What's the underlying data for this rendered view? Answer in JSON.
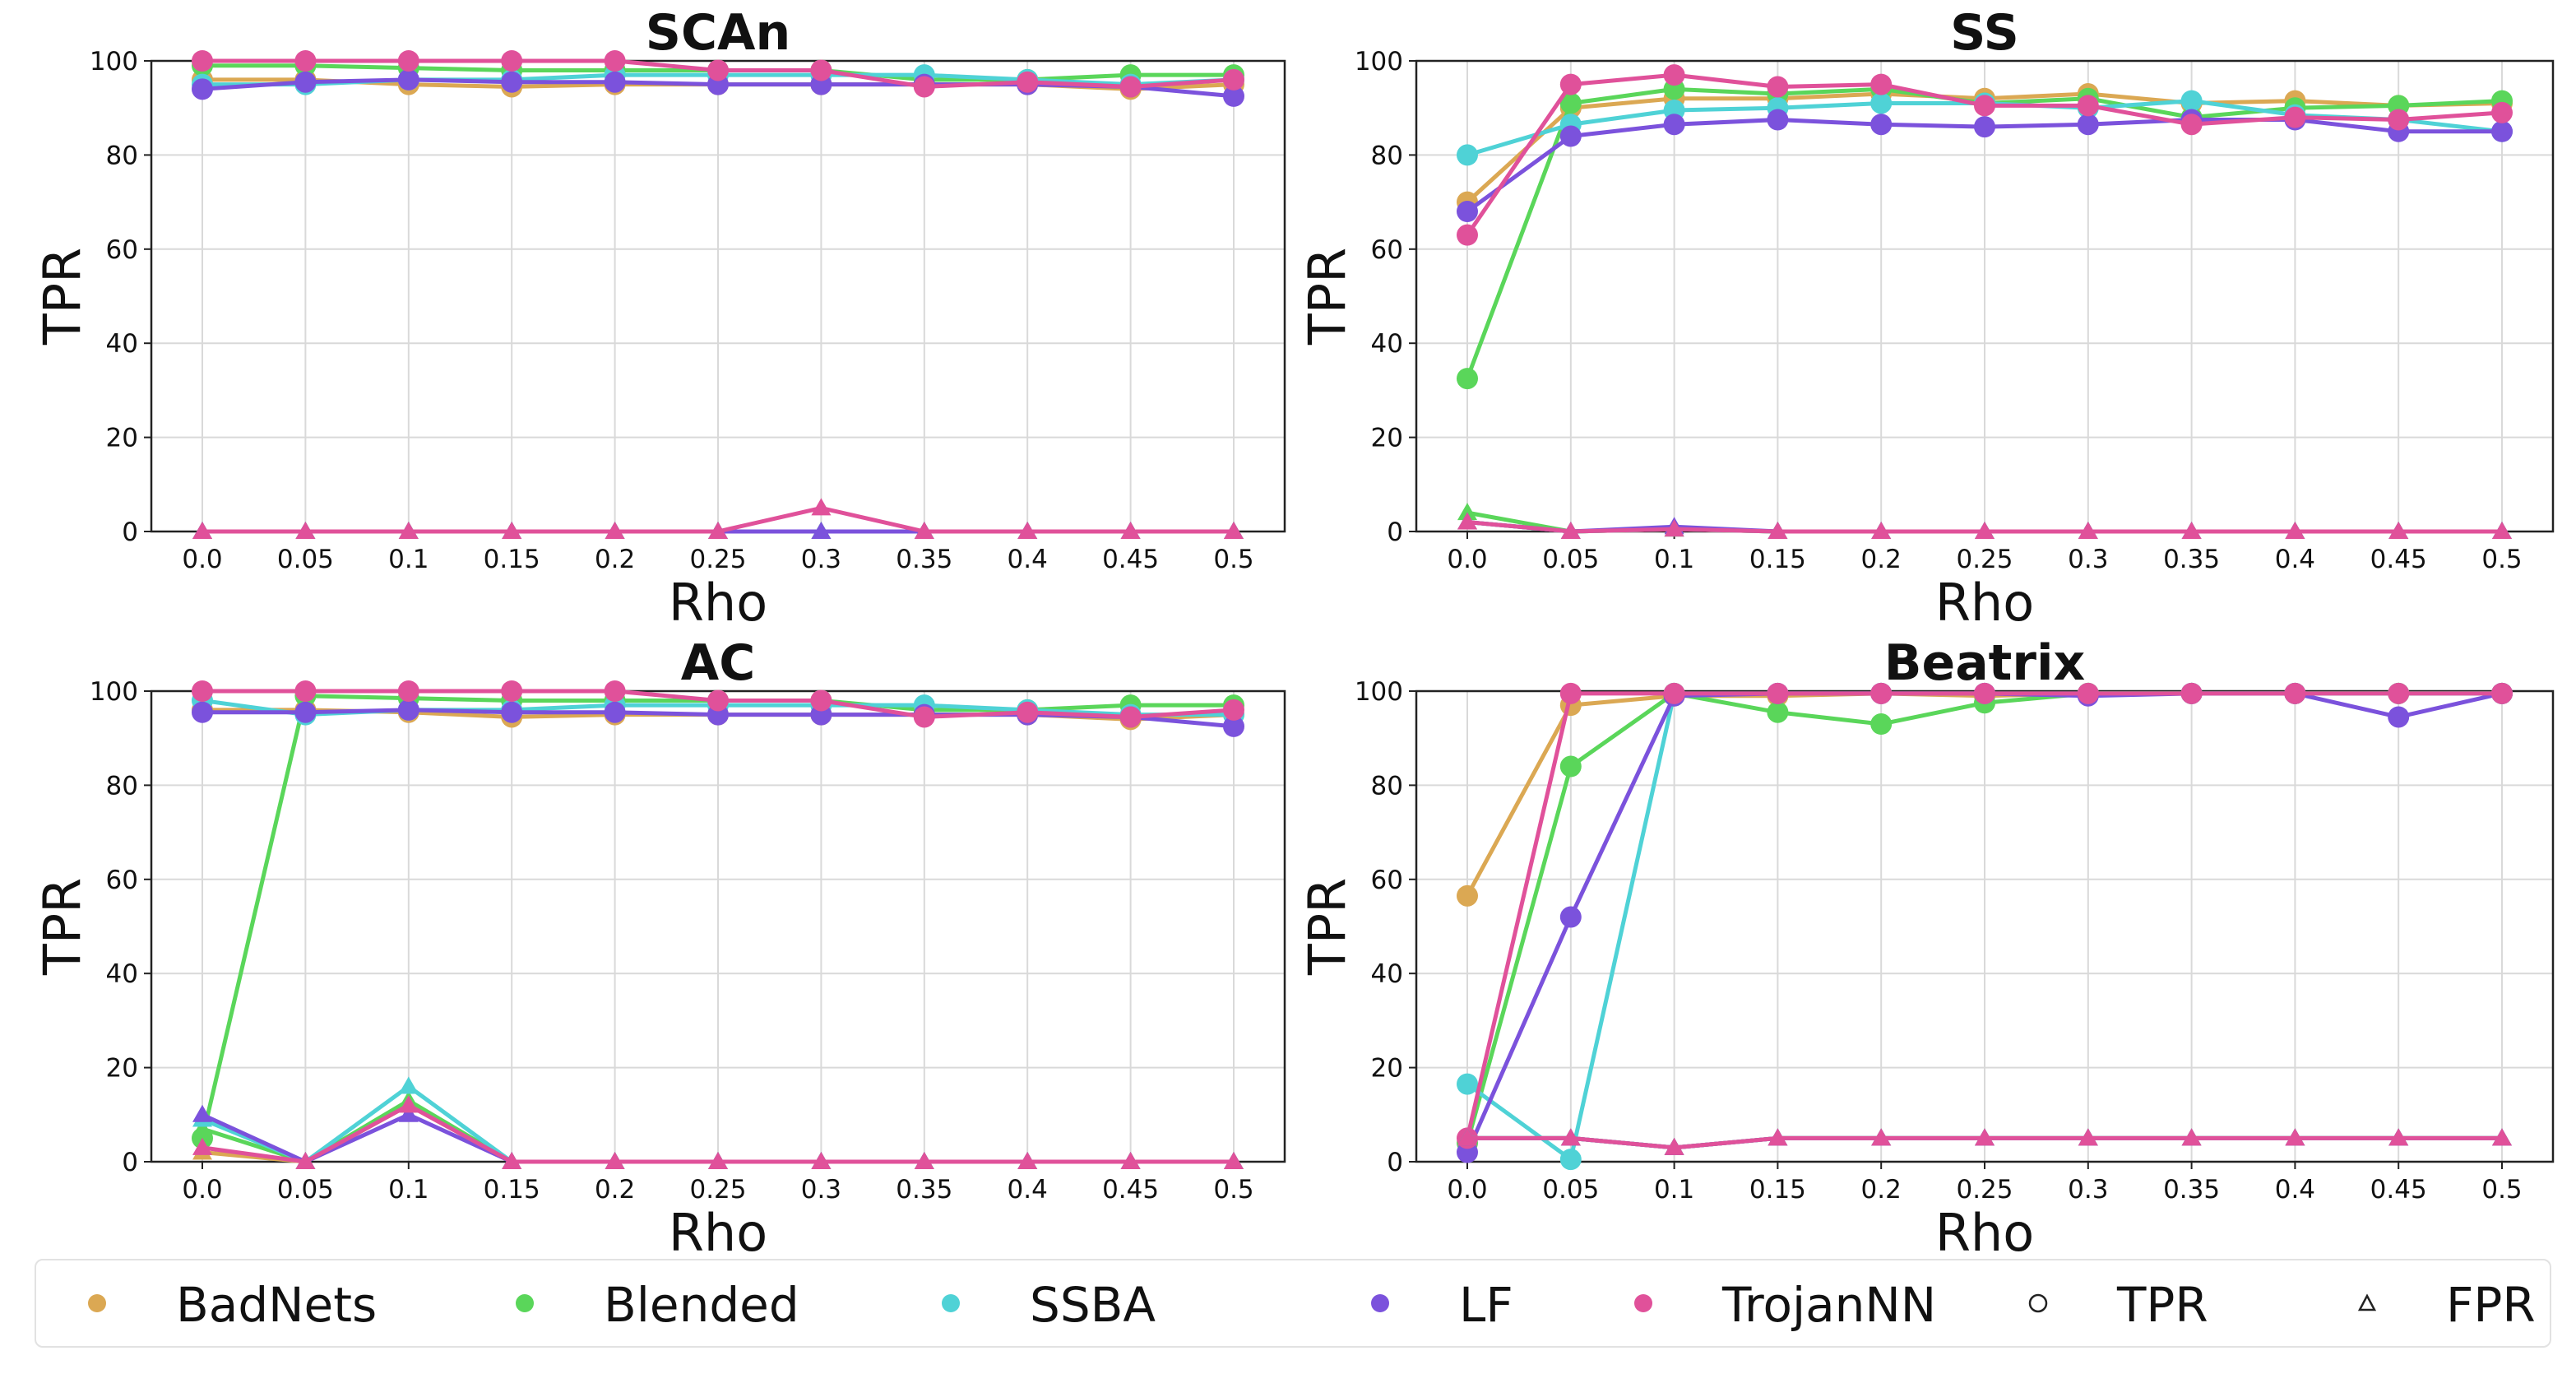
{
  "figure": {
    "ylabel": "TPR",
    "xlabel": "Rho"
  },
  "legend": {
    "items": [
      {
        "label": "BadNets",
        "color": "#dba853",
        "marker": "circle"
      },
      {
        "label": "Blended",
        "color": "#5ad65a",
        "marker": "circle"
      },
      {
        "label": "SSBA",
        "color": "#4fd2d6",
        "marker": "circle"
      },
      {
        "label": "LF",
        "color": "#7b52dc",
        "marker": "circle"
      },
      {
        "label": "TrojanNN",
        "color": "#e0519a",
        "marker": "circle"
      },
      {
        "label": "TPR",
        "color": "#222222",
        "marker": "open-circle"
      },
      {
        "label": "FPR",
        "color": "#222222",
        "marker": "open-triangle"
      }
    ]
  },
  "chart_data": [
    {
      "type": "line",
      "title": "SCAn",
      "xlabel": "Rho",
      "ylabel": "TPR",
      "categories": [
        "0.0",
        "0.05",
        "0.1",
        "0.15",
        "0.2",
        "0.25",
        "0.3",
        "0.35",
        "0.4",
        "0.45",
        "0.5"
      ],
      "ylim": [
        0,
        100
      ],
      "yticks": [
        "0",
        "20",
        "40",
        "60",
        "80",
        "100"
      ],
      "grid": true,
      "series": [
        {
          "name": "BadNets",
          "metric": "TPR",
          "color": "#dba853",
          "values": [
            96,
            96,
            95,
            94.5,
            95,
            95,
            95,
            95,
            95,
            94,
            95
          ]
        },
        {
          "name": "Blended",
          "metric": "TPR",
          "color": "#5ad65a",
          "values": [
            99,
            99,
            98.5,
            98,
            98,
            98,
            98,
            96,
            96,
            97,
            97
          ]
        },
        {
          "name": "SSBA",
          "metric": "TPR",
          "color": "#4fd2d6",
          "values": [
            95,
            95,
            96,
            96,
            97,
            97,
            97,
            97,
            96,
            95,
            96
          ]
        },
        {
          "name": "LF",
          "metric": "TPR",
          "color": "#7b52dc",
          "values": [
            94,
            95.5,
            96,
            95.5,
            95.5,
            95,
            95,
            95,
            95,
            94.5,
            92.5
          ]
        },
        {
          "name": "TrojanNN",
          "metric": "TPR",
          "color": "#e0519a",
          "values": [
            100,
            100,
            100,
            100,
            100,
            98,
            98,
            94.5,
            95.5,
            94.5,
            96
          ]
        },
        {
          "name": "BadNets",
          "metric": "FPR",
          "color": "#dba853",
          "values": [
            0,
            0,
            0,
            0,
            0,
            0,
            0,
            0,
            0,
            0,
            0
          ]
        },
        {
          "name": "Blended",
          "metric": "FPR",
          "color": "#5ad65a",
          "values": [
            0,
            0,
            0,
            0,
            0,
            0,
            0,
            0,
            0,
            0,
            0
          ]
        },
        {
          "name": "SSBA",
          "metric": "FPR",
          "color": "#4fd2d6",
          "values": [
            0,
            0,
            0,
            0,
            0,
            0,
            0,
            0,
            0,
            0,
            0
          ]
        },
        {
          "name": "LF",
          "metric": "FPR",
          "color": "#7b52dc",
          "values": [
            0,
            0,
            0,
            0,
            0,
            0,
            0,
            0,
            0,
            0,
            0
          ]
        },
        {
          "name": "TrojanNN",
          "metric": "FPR",
          "color": "#e0519a",
          "values": [
            0,
            0,
            0,
            0,
            0,
            0,
            5,
            0,
            0,
            0,
            0
          ]
        }
      ]
    },
    {
      "type": "line",
      "title": "SS",
      "xlabel": "Rho",
      "ylabel": "TPR",
      "categories": [
        "0.0",
        "0.05",
        "0.1",
        "0.15",
        "0.2",
        "0.25",
        "0.3",
        "0.35",
        "0.4",
        "0.45",
        "0.5"
      ],
      "ylim": [
        0,
        100
      ],
      "yticks": [
        "0",
        "20",
        "40",
        "60",
        "80",
        "100"
      ],
      "grid": true,
      "series": [
        {
          "name": "BadNets",
          "metric": "TPR",
          "color": "#dba853",
          "values": [
            70,
            90,
            92,
            92,
            93,
            92,
            93,
            91,
            91.5,
            90.5,
            91
          ]
        },
        {
          "name": "Blended",
          "metric": "TPR",
          "color": "#5ad65a",
          "values": [
            32.5,
            91,
            94,
            93,
            94,
            91,
            92,
            88,
            90,
            90.5,
            91.5
          ]
        },
        {
          "name": "SSBA",
          "metric": "TPR",
          "color": "#4fd2d6",
          "values": [
            80,
            86.5,
            89.5,
            90,
            91,
            91,
            90,
            91.5,
            88.5,
            87.5,
            85
          ]
        },
        {
          "name": "LF",
          "metric": "TPR",
          "color": "#7b52dc",
          "values": [
            68,
            84,
            86.5,
            87.5,
            86.5,
            86,
            86.5,
            87.5,
            87.5,
            85,
            85
          ]
        },
        {
          "name": "TrojanNN",
          "metric": "TPR",
          "color": "#e0519a",
          "values": [
            63,
            95,
            97,
            94.5,
            95,
            90.5,
            90.5,
            86.5,
            88,
            87.5,
            89
          ]
        },
        {
          "name": "BadNets",
          "metric": "FPR",
          "color": "#dba853",
          "values": [
            2,
            0,
            0.5,
            0,
            0,
            0,
            0,
            0,
            0,
            0,
            0
          ]
        },
        {
          "name": "Blended",
          "metric": "FPR",
          "color": "#5ad65a",
          "values": [
            4,
            0,
            0.5,
            0,
            0,
            0,
            0,
            0,
            0,
            0,
            0
          ]
        },
        {
          "name": "SSBA",
          "metric": "FPR",
          "color": "#4fd2d6",
          "values": [
            2,
            0,
            0.5,
            0,
            0,
            0,
            0,
            0,
            0,
            0,
            0
          ]
        },
        {
          "name": "LF",
          "metric": "FPR",
          "color": "#7b52dc",
          "values": [
            2,
            0,
            1,
            0,
            0,
            0,
            0,
            0,
            0,
            0,
            0
          ]
        },
        {
          "name": "TrojanNN",
          "metric": "FPR",
          "color": "#e0519a",
          "values": [
            2,
            0,
            0.5,
            0,
            0,
            0,
            0,
            0,
            0,
            0,
            0
          ]
        }
      ]
    },
    {
      "type": "line",
      "title": "AC",
      "xlabel": "Rho",
      "ylabel": "TPR",
      "categories": [
        "0.0",
        "0.05",
        "0.1",
        "0.15",
        "0.2",
        "0.25",
        "0.3",
        "0.35",
        "0.4",
        "0.45",
        "0.5"
      ],
      "ylim": [
        0,
        100
      ],
      "yticks": [
        "0",
        "20",
        "40",
        "60",
        "80",
        "100"
      ],
      "grid": true,
      "series": [
        {
          "name": "BadNets",
          "metric": "TPR",
          "color": "#dba853",
          "values": [
            96,
            96,
            95.5,
            94.5,
            95,
            95,
            95,
            95,
            95,
            94,
            95
          ]
        },
        {
          "name": "Blended",
          "metric": "TPR",
          "color": "#5ad65a",
          "values": [
            5,
            99,
            98.5,
            98,
            98,
            98,
            98,
            96,
            96,
            97,
            97
          ]
        },
        {
          "name": "SSBA",
          "metric": "TPR",
          "color": "#4fd2d6",
          "values": [
            98,
            95,
            96,
            96,
            97,
            97,
            97,
            97,
            96,
            95,
            95
          ]
        },
        {
          "name": "LF",
          "metric": "TPR",
          "color": "#7b52dc",
          "values": [
            95.5,
            95.5,
            96,
            95.5,
            95.5,
            95,
            95,
            95,
            95,
            94.5,
            92.5
          ]
        },
        {
          "name": "TrojanNN",
          "metric": "TPR",
          "color": "#e0519a",
          "values": [
            100,
            100,
            100,
            100,
            100,
            98,
            98,
            94.5,
            95.5,
            94.5,
            96
          ]
        },
        {
          "name": "BadNets",
          "metric": "FPR",
          "color": "#dba853",
          "values": [
            2,
            0,
            12,
            0,
            0,
            0,
            0,
            0,
            0,
            0,
            0
          ]
        },
        {
          "name": "Blended",
          "metric": "FPR",
          "color": "#5ad65a",
          "values": [
            7,
            0,
            13,
            0,
            0,
            0,
            0,
            0,
            0,
            0,
            0
          ]
        },
        {
          "name": "SSBA",
          "metric": "FPR",
          "color": "#4fd2d6",
          "values": [
            9,
            0,
            16,
            0,
            0,
            0,
            0,
            0,
            0,
            0,
            0
          ]
        },
        {
          "name": "LF",
          "metric": "FPR",
          "color": "#7b52dc",
          "values": [
            10,
            0,
            10,
            0,
            0,
            0,
            0,
            0,
            0,
            0,
            0
          ]
        },
        {
          "name": "TrojanNN",
          "metric": "FPR",
          "color": "#e0519a",
          "values": [
            3,
            0,
            12,
            0,
            0,
            0,
            0,
            0,
            0,
            0,
            0
          ]
        }
      ]
    },
    {
      "type": "line",
      "title": "Beatrix",
      "xlabel": "Rho",
      "ylabel": "TPR",
      "categories": [
        "0.0",
        "0.05",
        "0.1",
        "0.15",
        "0.2",
        "0.25",
        "0.3",
        "0.35",
        "0.4",
        "0.45",
        "0.5"
      ],
      "ylim": [
        0,
        100
      ],
      "yticks": [
        "0",
        "20",
        "40",
        "60",
        "80",
        "100"
      ],
      "grid": true,
      "series": [
        {
          "name": "BadNets",
          "metric": "TPR",
          "color": "#dba853",
          "values": [
            56.5,
            97,
            99,
            99,
            99.5,
            99,
            99.5,
            99.5,
            99.5,
            99.5,
            99.5
          ]
        },
        {
          "name": "Blended",
          "metric": "TPR",
          "color": "#5ad65a",
          "values": [
            4,
            84,
            99.5,
            95.5,
            93,
            97.5,
            99.5,
            99.5,
            99.5,
            99.5,
            99.5
          ]
        },
        {
          "name": "SSBA",
          "metric": "TPR",
          "color": "#4fd2d6",
          "values": [
            16.5,
            0.5,
            99.5,
            99.5,
            99.5,
            99.5,
            99.5,
            99.5,
            99.5,
            99.5,
            99.5
          ]
        },
        {
          "name": "LF",
          "metric": "TPR",
          "color": "#7b52dc",
          "values": [
            2,
            52,
            99,
            99.5,
            99.5,
            99.5,
            99,
            99.5,
            99.5,
            94.5,
            99.5
          ]
        },
        {
          "name": "TrojanNN",
          "metric": "TPR",
          "color": "#e0519a",
          "values": [
            5,
            99.5,
            99.5,
            99.5,
            99.5,
            99.5,
            99.5,
            99.5,
            99.5,
            99.5,
            99.5
          ]
        },
        {
          "name": "BadNets",
          "metric": "FPR",
          "color": "#dba853",
          "values": [
            5,
            5,
            3,
            5,
            5,
            5,
            5,
            5,
            5,
            5,
            5
          ]
        },
        {
          "name": "Blended",
          "metric": "FPR",
          "color": "#5ad65a",
          "values": [
            5,
            5,
            3,
            5,
            5,
            5,
            5,
            5,
            5,
            5,
            5
          ]
        },
        {
          "name": "SSBA",
          "metric": "FPR",
          "color": "#4fd2d6",
          "values": [
            5,
            5,
            3,
            5,
            5,
            5,
            5,
            5,
            5,
            5,
            5
          ]
        },
        {
          "name": "LF",
          "metric": "FPR",
          "color": "#7b52dc",
          "values": [
            5,
            5,
            3,
            5,
            5,
            5,
            5,
            5,
            5,
            5,
            5
          ]
        },
        {
          "name": "TrojanNN",
          "metric": "FPR",
          "color": "#e0519a",
          "values": [
            5,
            5,
            3,
            5,
            5,
            5,
            5,
            5,
            5,
            5,
            5
          ]
        }
      ]
    }
  ]
}
